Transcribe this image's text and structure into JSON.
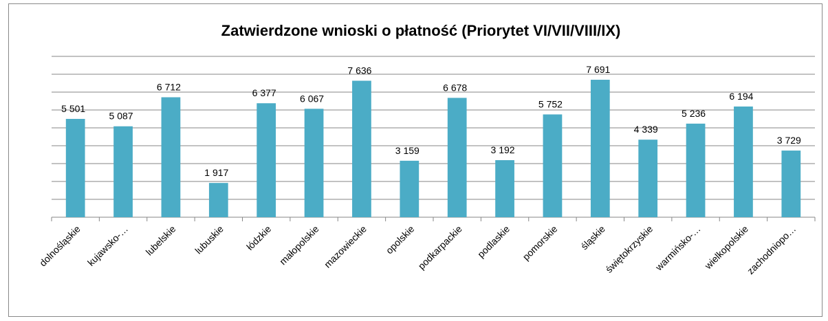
{
  "chart_data": {
    "type": "bar",
    "title": "Zatwierdzone wnioski o płatność (Priorytet VI/VII/VIII/IX)",
    "categories": [
      "dolnośląskie",
      "kujawsko-…",
      "lubelskie",
      "lubuskie",
      "łódzkie",
      "małopolskie",
      "mazowieckie",
      "opolskie",
      "podkarpackie",
      "podlaskie",
      "pomorskie",
      "śląskie",
      "świętokrzyskie",
      "warmińsko-…",
      "wielkopolskie",
      "zachodniopo…"
    ],
    "values": [
      5501,
      5087,
      6712,
      1917,
      6377,
      6067,
      7636,
      3159,
      6678,
      3192,
      5752,
      7691,
      4339,
      5236,
      6194,
      3729
    ],
    "value_labels": [
      "5 501",
      "5 087",
      "6 712",
      "1 917",
      "6 377",
      "6 067",
      "7 636",
      "3 159",
      "6 678",
      "3 192",
      "5 752",
      "7 691",
      "4 339",
      "5 236",
      "6 194",
      "3 729"
    ],
    "color": "#4bacc6",
    "ylim": [
      0,
      9000
    ],
    "yticks": [
      0,
      1000,
      2000,
      3000,
      4000,
      5000,
      6000,
      7000,
      8000,
      9000
    ],
    "grid": true
  }
}
